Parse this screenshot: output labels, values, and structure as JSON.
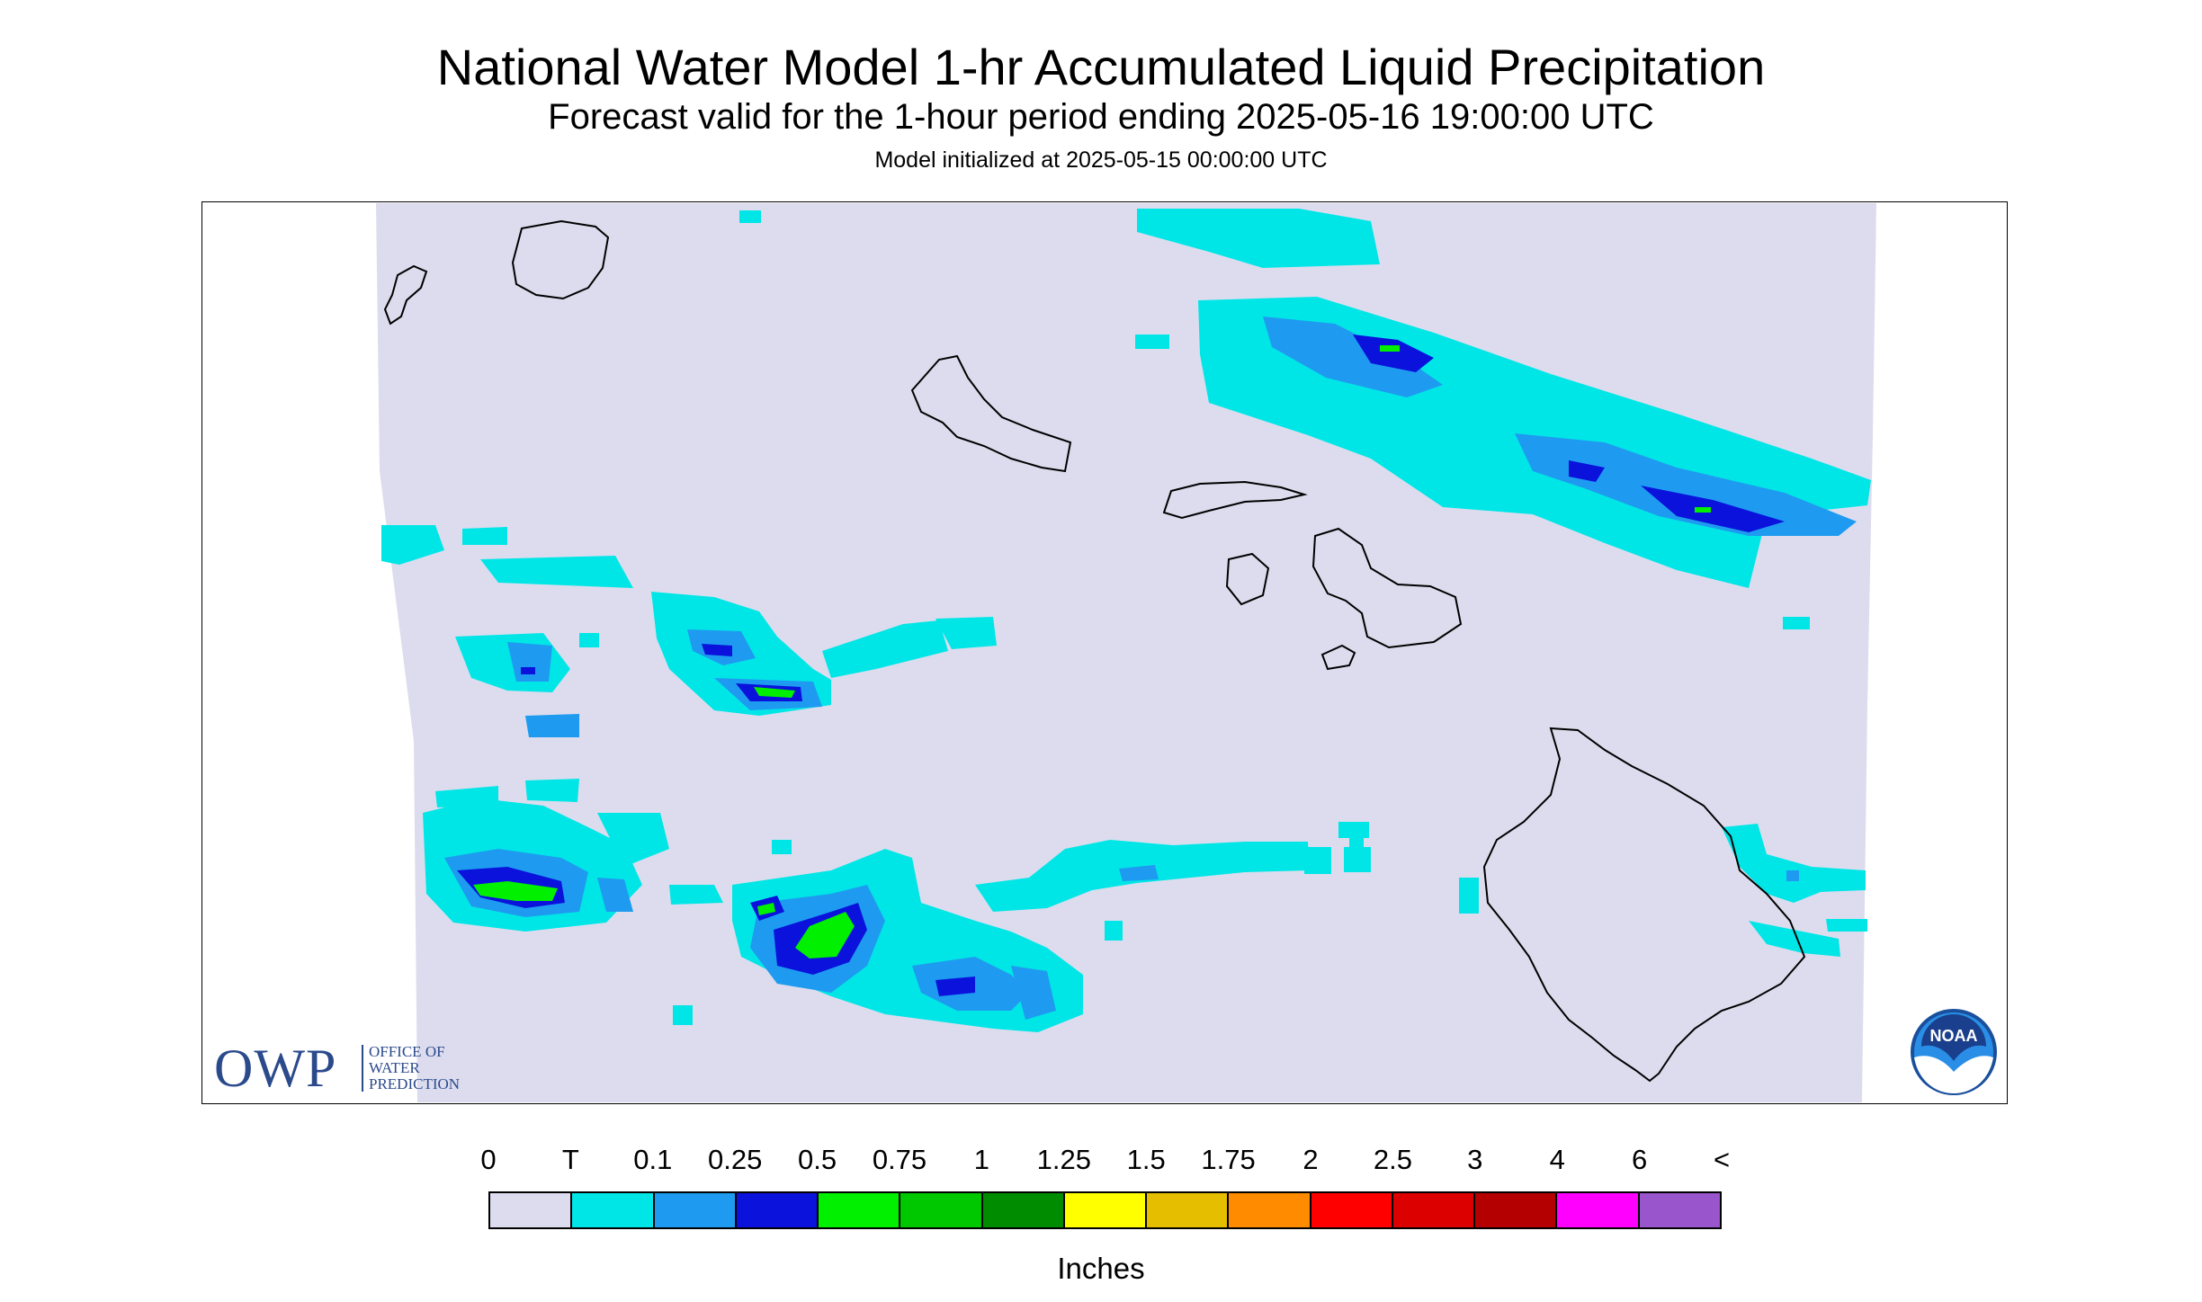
{
  "title": "National Water Model 1-hr Accumulated Liquid Precipitation",
  "subtitle": "Forecast valid for the 1-hour period ending 2025-05-16 19:00:00 UTC",
  "init_text": "Model initialized at 2025-05-15 00:00:00 UTC",
  "units": "Inches",
  "owp": {
    "abbr": "OWP",
    "line1": "OFFICE OF",
    "line2": "WATER",
    "line3": "PREDICTION"
  },
  "noaa_text": "NOAA",
  "legend": {
    "labels": [
      "0",
      "T",
      "0.1",
      "0.25",
      "0.5",
      "0.75",
      "1",
      "1.25",
      "1.5",
      "1.75",
      "2",
      "2.5",
      "3",
      "4",
      "6",
      "<"
    ],
    "colors": [
      "#dcdcee",
      "#00e6e6",
      "#1e9bf0",
      "#0a12dc",
      "#00f000",
      "#00c800",
      "#008c00",
      "#ffff00",
      "#e6be00",
      "#ff8c00",
      "#ff0000",
      "#dc0000",
      "#b40000",
      "#ff00ff",
      "#9955cc"
    ]
  },
  "colors": {
    "map_background": "#dcdcee",
    "frame": "#000000",
    "coast": "#000000"
  }
}
